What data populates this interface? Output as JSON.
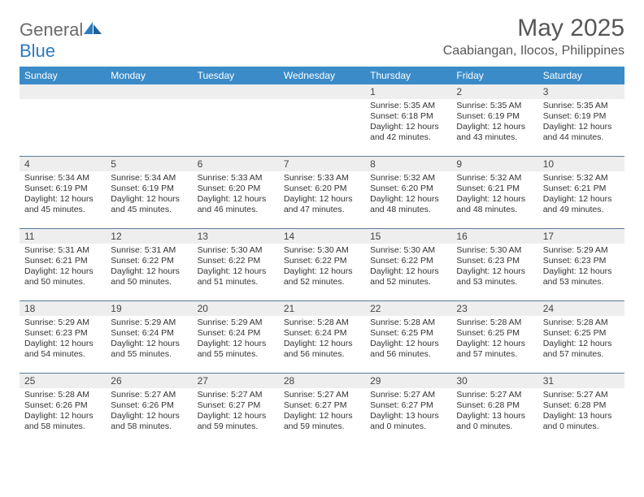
{
  "logo": {
    "general": "General",
    "blue": "Blue"
  },
  "title": "May 2025",
  "location": "Caabiangan, Ilocos, Philippines",
  "day_header_bg": "#3b8bc8",
  "day_header_text": "#ffffff",
  "daynum_bg": "#eeeeee",
  "rule_color": "#5a7a9a",
  "daynames": [
    "Sunday",
    "Monday",
    "Tuesday",
    "Wednesday",
    "Thursday",
    "Friday",
    "Saturday"
  ],
  "weeks": [
    [
      null,
      null,
      null,
      null,
      {
        "n": "1",
        "sr": "Sunrise: 5:35 AM",
        "ss": "Sunset: 6:18 PM",
        "dl": "Daylight: 12 hours and 42 minutes."
      },
      {
        "n": "2",
        "sr": "Sunrise: 5:35 AM",
        "ss": "Sunset: 6:19 PM",
        "dl": "Daylight: 12 hours and 43 minutes."
      },
      {
        "n": "3",
        "sr": "Sunrise: 5:35 AM",
        "ss": "Sunset: 6:19 PM",
        "dl": "Daylight: 12 hours and 44 minutes."
      }
    ],
    [
      {
        "n": "4",
        "sr": "Sunrise: 5:34 AM",
        "ss": "Sunset: 6:19 PM",
        "dl": "Daylight: 12 hours and 45 minutes."
      },
      {
        "n": "5",
        "sr": "Sunrise: 5:34 AM",
        "ss": "Sunset: 6:19 PM",
        "dl": "Daylight: 12 hours and 45 minutes."
      },
      {
        "n": "6",
        "sr": "Sunrise: 5:33 AM",
        "ss": "Sunset: 6:20 PM",
        "dl": "Daylight: 12 hours and 46 minutes."
      },
      {
        "n": "7",
        "sr": "Sunrise: 5:33 AM",
        "ss": "Sunset: 6:20 PM",
        "dl": "Daylight: 12 hours and 47 minutes."
      },
      {
        "n": "8",
        "sr": "Sunrise: 5:32 AM",
        "ss": "Sunset: 6:20 PM",
        "dl": "Daylight: 12 hours and 48 minutes."
      },
      {
        "n": "9",
        "sr": "Sunrise: 5:32 AM",
        "ss": "Sunset: 6:21 PM",
        "dl": "Daylight: 12 hours and 48 minutes."
      },
      {
        "n": "10",
        "sr": "Sunrise: 5:32 AM",
        "ss": "Sunset: 6:21 PM",
        "dl": "Daylight: 12 hours and 49 minutes."
      }
    ],
    [
      {
        "n": "11",
        "sr": "Sunrise: 5:31 AM",
        "ss": "Sunset: 6:21 PM",
        "dl": "Daylight: 12 hours and 50 minutes."
      },
      {
        "n": "12",
        "sr": "Sunrise: 5:31 AM",
        "ss": "Sunset: 6:22 PM",
        "dl": "Daylight: 12 hours and 50 minutes."
      },
      {
        "n": "13",
        "sr": "Sunrise: 5:30 AM",
        "ss": "Sunset: 6:22 PM",
        "dl": "Daylight: 12 hours and 51 minutes."
      },
      {
        "n": "14",
        "sr": "Sunrise: 5:30 AM",
        "ss": "Sunset: 6:22 PM",
        "dl": "Daylight: 12 hours and 52 minutes."
      },
      {
        "n": "15",
        "sr": "Sunrise: 5:30 AM",
        "ss": "Sunset: 6:22 PM",
        "dl": "Daylight: 12 hours and 52 minutes."
      },
      {
        "n": "16",
        "sr": "Sunrise: 5:30 AM",
        "ss": "Sunset: 6:23 PM",
        "dl": "Daylight: 12 hours and 53 minutes."
      },
      {
        "n": "17",
        "sr": "Sunrise: 5:29 AM",
        "ss": "Sunset: 6:23 PM",
        "dl": "Daylight: 12 hours and 53 minutes."
      }
    ],
    [
      {
        "n": "18",
        "sr": "Sunrise: 5:29 AM",
        "ss": "Sunset: 6:23 PM",
        "dl": "Daylight: 12 hours and 54 minutes."
      },
      {
        "n": "19",
        "sr": "Sunrise: 5:29 AM",
        "ss": "Sunset: 6:24 PM",
        "dl": "Daylight: 12 hours and 55 minutes."
      },
      {
        "n": "20",
        "sr": "Sunrise: 5:29 AM",
        "ss": "Sunset: 6:24 PM",
        "dl": "Daylight: 12 hours and 55 minutes."
      },
      {
        "n": "21",
        "sr": "Sunrise: 5:28 AM",
        "ss": "Sunset: 6:24 PM",
        "dl": "Daylight: 12 hours and 56 minutes."
      },
      {
        "n": "22",
        "sr": "Sunrise: 5:28 AM",
        "ss": "Sunset: 6:25 PM",
        "dl": "Daylight: 12 hours and 56 minutes."
      },
      {
        "n": "23",
        "sr": "Sunrise: 5:28 AM",
        "ss": "Sunset: 6:25 PM",
        "dl": "Daylight: 12 hours and 57 minutes."
      },
      {
        "n": "24",
        "sr": "Sunrise: 5:28 AM",
        "ss": "Sunset: 6:25 PM",
        "dl": "Daylight: 12 hours and 57 minutes."
      }
    ],
    [
      {
        "n": "25",
        "sr": "Sunrise: 5:28 AM",
        "ss": "Sunset: 6:26 PM",
        "dl": "Daylight: 12 hours and 58 minutes."
      },
      {
        "n": "26",
        "sr": "Sunrise: 5:27 AM",
        "ss": "Sunset: 6:26 PM",
        "dl": "Daylight: 12 hours and 58 minutes."
      },
      {
        "n": "27",
        "sr": "Sunrise: 5:27 AM",
        "ss": "Sunset: 6:27 PM",
        "dl": "Daylight: 12 hours and 59 minutes."
      },
      {
        "n": "28",
        "sr": "Sunrise: 5:27 AM",
        "ss": "Sunset: 6:27 PM",
        "dl": "Daylight: 12 hours and 59 minutes."
      },
      {
        "n": "29",
        "sr": "Sunrise: 5:27 AM",
        "ss": "Sunset: 6:27 PM",
        "dl": "Daylight: 13 hours and 0 minutes."
      },
      {
        "n": "30",
        "sr": "Sunrise: 5:27 AM",
        "ss": "Sunset: 6:28 PM",
        "dl": "Daylight: 13 hours and 0 minutes."
      },
      {
        "n": "31",
        "sr": "Sunrise: 5:27 AM",
        "ss": "Sunset: 6:28 PM",
        "dl": "Daylight: 13 hours and 0 minutes."
      }
    ]
  ]
}
